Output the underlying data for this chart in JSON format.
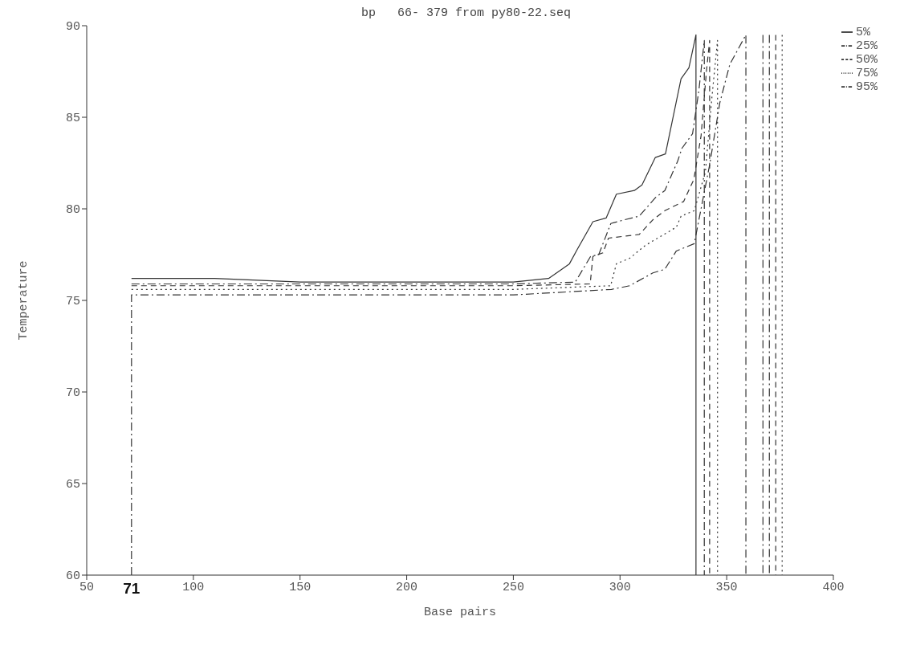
{
  "chart_data": {
    "type": "line",
    "title": "bp   66- 379 from py80-22.seq",
    "xlabel": "Base pairs",
    "ylabel": "Temperature",
    "xlim": [
      50,
      400
    ],
    "xticks": [
      50,
      100,
      150,
      200,
      250,
      300,
      350,
      400
    ],
    "ylim": [
      60,
      90
    ],
    "yticks": [
      60,
      65,
      70,
      75,
      80,
      85,
      90
    ],
    "grid": false,
    "legend": "top right",
    "marker": "none",
    "annotations": [
      {
        "text": "71",
        "x": 71,
        "y": 60
      }
    ],
    "series": [
      {
        "name": "5%",
        "color": "#333333",
        "line_style": "solid",
        "x": [
          71,
          110,
          150,
          200,
          250,
          266.5,
          272.7,
          276.3,
          280,
          287.3,
          293.5,
          298.3,
          306.7,
          310.3,
          316.5,
          321.3,
          328.6,
          332.3,
          335.6,
          335.6
        ],
        "values": [
          76.2,
          76.2,
          76.0,
          76.0,
          76.0,
          76.2,
          76.7,
          77.0,
          77.8,
          79.3,
          79.5,
          80.8,
          81.0,
          81.3,
          82.8,
          83.0,
          87.1,
          87.7,
          89.5,
          60
        ]
      },
      {
        "name": "25%",
        "color": "#333333",
        "line_style": "dashdot",
        "x": [
          71,
          150,
          250,
          279,
          286.2,
          290,
          295.7,
          302,
          309,
          316.5,
          321,
          327,
          329,
          334,
          337,
          339.5,
          339.5,
          339.6,
          370,
          370
        ],
        "values": [
          75.9,
          75.9,
          75.9,
          76.0,
          77.4,
          77.5,
          79.2,
          79.4,
          79.6,
          80.6,
          81.0,
          82.6,
          83.3,
          84.1,
          86.5,
          89.2,
          60,
          null,
          89.5,
          60
        ]
      },
      {
        "name": "50%",
        "color": "#333333",
        "line_style": "dashed",
        "x": [
          71,
          150,
          250,
          286,
          287.3,
          292,
          294.6,
          309,
          315.4,
          321,
          329.8,
          334.6,
          338,
          340.5,
          342,
          342,
          342.1,
          373,
          373
        ],
        "values": [
          75.8,
          75.8,
          75.8,
          75.9,
          77.4,
          77.6,
          78.4,
          78.6,
          79.4,
          79.9,
          80.4,
          81.6,
          84,
          87.5,
          89.2,
          60,
          null,
          89.5,
          60
        ]
      },
      {
        "name": "75%",
        "color": "#333333",
        "line_style": "dotted",
        "x": [
          71,
          150,
          250,
          295.6,
          298.3,
          304.5,
          311.8,
          326.4,
          328.6,
          334.8,
          340,
          343,
          345.7,
          345.7,
          345.8,
          376,
          376
        ],
        "values": [
          75.6,
          75.6,
          75.6,
          75.8,
          77.0,
          77.3,
          78.0,
          79.0,
          79.6,
          79.9,
          82,
          86,
          89.2,
          60,
          null,
          89.5,
          60
        ]
      },
      {
        "name": "95%",
        "color": "#333333",
        "line_style": "dashdot",
        "x": [
          71,
          71,
          150,
          250,
          296,
          304.5,
          315.4,
          321,
          326.4,
          334.8,
          342,
          346.8,
          351.5,
          359,
          359,
          359.1,
          367,
          367
        ],
        "values": [
          60,
          75.3,
          75.3,
          75.3,
          75.6,
          75.8,
          76.5,
          76.7,
          77.7,
          78.1,
          82.4,
          85.8,
          87.9,
          89.5,
          60,
          null,
          89.5,
          60
        ]
      }
    ]
  }
}
